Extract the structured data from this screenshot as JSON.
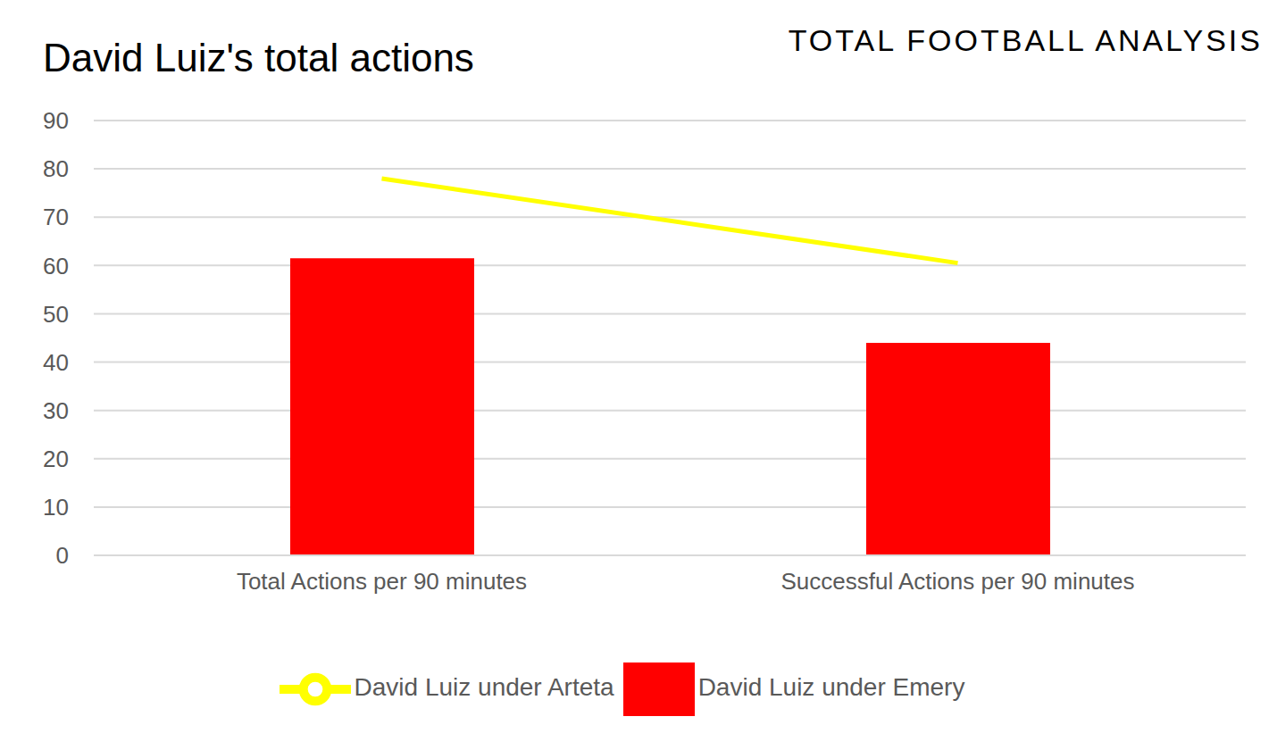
{
  "chart_data": {
    "type": "bar",
    "title": "David Luiz's total actions",
    "annotations": [
      "Total Football Analysis"
    ],
    "categories": [
      "Total Actions per 90 minutes",
      "Successful Actions per 90 minutes"
    ],
    "series": [
      {
        "name": "David Luiz under Emery",
        "type": "bar",
        "color": "#ff0000",
        "values": [
          61.5,
          44
        ]
      },
      {
        "name": "David Luiz under Arteta",
        "type": "line",
        "color": "#ffff00",
        "values": [
          78,
          60.5
        ]
      }
    ],
    "ylim": [
      0,
      90
    ],
    "yticks": [
      0,
      10,
      20,
      30,
      40,
      50,
      60,
      70,
      80,
      90
    ],
    "grid": true,
    "legend": "bottom"
  }
}
